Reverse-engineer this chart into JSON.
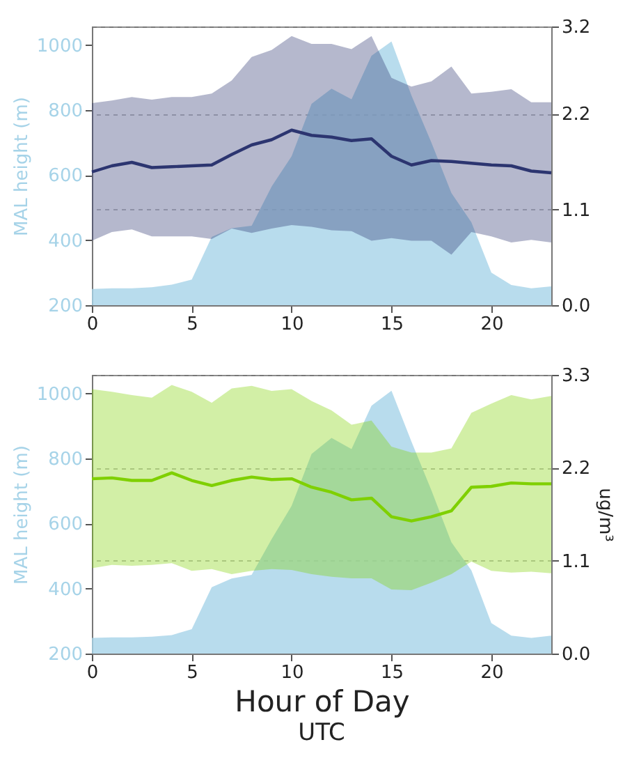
{
  "chart_data": [
    {
      "type": "area",
      "x": [
        0,
        1,
        2,
        3,
        4,
        5,
        6,
        7,
        8,
        9,
        10,
        11,
        12,
        13,
        14,
        15,
        16,
        17,
        18,
        19,
        20,
        21,
        22,
        23
      ],
      "ylabel": "MAL height (m)",
      "xlim": [
        0,
        23
      ],
      "xticks": [
        0,
        5,
        10,
        15,
        20
      ],
      "ylim": [
        200,
        1057
      ],
      "yticks": [
        200,
        400,
        600,
        800,
        1000
      ],
      "y2lim": [
        0,
        3.2
      ],
      "y2ticks": [
        "0.0",
        1.1,
        2.2,
        3.2
      ],
      "grid": "y2",
      "series": [
        {
          "color": "#a6d3e8",
          "values": [
            250,
            252,
            252,
            255,
            263,
            279,
            410,
            437,
            444,
            565,
            658,
            819,
            866,
            833,
            967,
            1011,
            845,
            700,
            545,
            455,
            300,
            262,
            252,
            258
          ]
        },
        {
          "type": "line",
          "axis": "y2",
          "color": "#2c3570",
          "values": [
            1.53,
            1.6,
            1.64,
            1.58,
            1.59,
            1.6,
            1.61,
            1.73,
            1.84,
            1.9,
            2.01,
            1.95,
            1.93,
            1.89,
            1.91,
            1.71,
            1.61,
            1.66,
            1.65,
            1.63,
            1.61,
            1.6,
            1.54,
            1.52
          ],
          "lower": [
            0.74,
            0.84,
            0.87,
            0.79,
            0.79,
            0.79,
            0.76,
            0.88,
            0.83,
            0.88,
            0.92,
            0.9,
            0.86,
            0.85,
            0.74,
            0.77,
            0.74,
            0.74,
            0.58,
            0.84,
            0.79,
            0.72,
            0.75,
            0.72
          ],
          "upper": [
            2.32,
            2.35,
            2.39,
            2.36,
            2.39,
            2.39,
            2.43,
            2.58,
            2.85,
            2.93,
            3.09,
            3.0,
            3.0,
            2.94,
            3.09,
            2.61,
            2.51,
            2.57,
            2.74,
            2.43,
            2.45,
            2.48,
            2.33,
            2.33
          ]
        }
      ]
    },
    {
      "type": "area",
      "x": [
        0,
        1,
        2,
        3,
        4,
        5,
        6,
        7,
        8,
        9,
        10,
        11,
        12,
        13,
        14,
        15,
        16,
        17,
        18,
        19,
        20,
        21,
        22,
        23
      ],
      "ylabel": "MAL height (m)",
      "y2label": "ug/m³",
      "xlabel": "Hour of Day",
      "annotations": [
        "UTC"
      ],
      "xlim": [
        0,
        23
      ],
      "xticks": [
        0,
        5,
        10,
        15,
        20
      ],
      "ylim": [
        200,
        1057
      ],
      "yticks": [
        200,
        400,
        600,
        800,
        1000
      ],
      "y2lim": [
        0,
        3.3
      ],
      "y2ticks": [
        "0.0",
        1.1,
        2.2,
        3.3
      ],
      "grid": "y2",
      "series": [
        {
          "color": "#a6d3e8",
          "values": [
            248,
            250,
            250,
            252,
            257,
            275,
            404,
            431,
            442,
            552,
            654,
            814,
            863,
            829,
            962,
            1008,
            852,
            702,
            542,
            456,
            294,
            255,
            248,
            255
          ]
        },
        {
          "type": "line",
          "axis": "y2",
          "color": "#7fd000",
          "values": [
            2.07,
            2.08,
            2.05,
            2.05,
            2.14,
            2.05,
            1.99,
            2.05,
            2.09,
            2.06,
            2.07,
            1.97,
            1.91,
            1.82,
            1.84,
            1.62,
            1.57,
            1.62,
            1.69,
            1.97,
            1.98,
            2.02,
            2.01,
            2.01
          ],
          "lower": [
            1.01,
            1.05,
            1.04,
            1.05,
            1.07,
            0.98,
            1.0,
            0.94,
            0.98,
            1.0,
            0.99,
            0.94,
            0.91,
            0.89,
            0.89,
            0.76,
            0.75,
            0.84,
            0.94,
            1.09,
            0.98,
            0.96,
            0.97,
            0.95
          ],
          "upper": [
            3.13,
            3.1,
            3.06,
            3.03,
            3.18,
            3.1,
            2.97,
            3.14,
            3.17,
            3.11,
            3.13,
            2.99,
            2.88,
            2.71,
            2.76,
            2.45,
            2.38,
            2.38,
            2.43,
            2.85,
            2.96,
            3.06,
            3.01,
            3.05
          ]
        }
      ]
    }
  ]
}
